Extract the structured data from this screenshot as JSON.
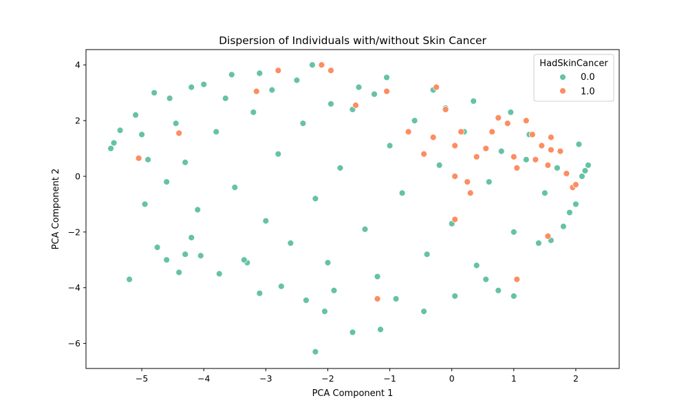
{
  "chart_data": {
    "type": "scatter",
    "title": "Dispersion of Individuals with/without Skin Cancer",
    "xlabel": "PCA Component 1",
    "ylabel": "PCA Component 2",
    "xlim": [
      -5.9,
      2.7
    ],
    "ylim": [
      -6.9,
      4.55
    ],
    "xticks": [
      -5,
      -4,
      -3,
      -2,
      -1,
      0,
      1,
      2
    ],
    "yticks": [
      -6,
      -4,
      -2,
      0,
      2,
      4
    ],
    "grid": false,
    "legend": {
      "title": "HadSkinCancer",
      "placement": "top-right"
    },
    "series": [
      {
        "name": "0.0",
        "color": "#66c2a5",
        "points": [
          [
            -5.5,
            1.0
          ],
          [
            -5.45,
            1.2
          ],
          [
            -5.35,
            1.65
          ],
          [
            -5.2,
            -3.7
          ],
          [
            -5.1,
            2.2
          ],
          [
            -5.0,
            1.5
          ],
          [
            -4.95,
            -1.0
          ],
          [
            -4.8,
            3.0
          ],
          [
            -4.75,
            -2.55
          ],
          [
            -4.6,
            -3.0
          ],
          [
            -4.55,
            2.8
          ],
          [
            -4.4,
            -3.45
          ],
          [
            -4.3,
            -2.8
          ],
          [
            -4.2,
            3.2
          ],
          [
            -4.05,
            -2.85
          ],
          [
            -4.0,
            3.3
          ],
          [
            -3.75,
            -3.5
          ],
          [
            -3.55,
            3.65
          ],
          [
            -3.3,
            -3.1
          ],
          [
            -3.1,
            -4.2
          ],
          [
            -3.1,
            3.7
          ],
          [
            -2.75,
            -3.95
          ],
          [
            -2.5,
            3.45
          ],
          [
            -2.35,
            -4.45
          ],
          [
            -2.2,
            -6.3
          ],
          [
            -2.25,
            4.0
          ],
          [
            -2.05,
            -4.85
          ],
          [
            -1.95,
            2.6
          ],
          [
            -1.6,
            -5.6
          ],
          [
            -1.5,
            3.2
          ],
          [
            -1.15,
            -5.5
          ],
          [
            -1.05,
            3.55
          ],
          [
            -0.45,
            -4.85
          ],
          [
            -0.3,
            3.1
          ],
          [
            0.05,
            -4.3
          ],
          [
            0.35,
            2.7
          ],
          [
            0.75,
            -4.1
          ],
          [
            0.95,
            2.3
          ],
          [
            1.0,
            -4.3
          ],
          [
            1.25,
            1.5
          ],
          [
            1.4,
            -2.4
          ],
          [
            1.6,
            -2.3
          ],
          [
            1.8,
            -1.8
          ],
          [
            2.0,
            -1.0
          ],
          [
            2.1,
            0.0
          ],
          [
            2.15,
            0.2
          ],
          [
            2.2,
            0.4
          ],
          [
            2.05,
            1.15
          ],
          [
            -4.3,
            0.5
          ],
          [
            -4.1,
            -1.2
          ],
          [
            -3.8,
            1.6
          ],
          [
            -3.5,
            -0.4
          ],
          [
            -3.2,
            2.3
          ],
          [
            -3.0,
            -1.6
          ],
          [
            -2.8,
            0.8
          ],
          [
            -2.6,
            -2.4
          ],
          [
            -2.4,
            1.9
          ],
          [
            -2.2,
            -0.8
          ],
          [
            -2.0,
            -3.1
          ],
          [
            -1.8,
            0.3
          ],
          [
            -1.6,
            2.4
          ],
          [
            -1.4,
            -1.9
          ],
          [
            -1.2,
            -3.6
          ],
          [
            -1.0,
            1.1
          ],
          [
            -0.8,
            -0.6
          ],
          [
            -0.6,
            2.0
          ],
          [
            -0.4,
            -2.8
          ],
          [
            -0.2,
            0.4
          ],
          [
            0.0,
            -1.7
          ],
          [
            0.2,
            1.6
          ],
          [
            0.4,
            -3.2
          ],
          [
            0.6,
            -0.2
          ],
          [
            0.8,
            0.9
          ],
          [
            1.0,
            -2.0
          ],
          [
            1.2,
            0.6
          ],
          [
            1.5,
            -0.6
          ],
          [
            1.7,
            0.3
          ],
          [
            1.9,
            -1.3
          ],
          [
            -4.6,
            -0.2
          ],
          [
            -4.9,
            0.6
          ],
          [
            -4.45,
            1.9
          ],
          [
            -3.65,
            2.8
          ],
          [
            -2.9,
            3.1
          ],
          [
            -1.25,
            2.95
          ],
          [
            -0.1,
            2.45
          ],
          [
            0.55,
            -3.7
          ],
          [
            -0.9,
            -4.4
          ],
          [
            -1.9,
            -4.1
          ],
          [
            -3.35,
            -3.0
          ],
          [
            -4.2,
            -2.2
          ]
        ]
      },
      {
        "name": "1.0",
        "color": "#fc8d62",
        "points": [
          [
            -5.05,
            0.65
          ],
          [
            -4.4,
            1.55
          ],
          [
            -3.15,
            3.05
          ],
          [
            -2.8,
            3.8
          ],
          [
            -2.1,
            4.0
          ],
          [
            -1.95,
            3.8
          ],
          [
            -1.55,
            2.55
          ],
          [
            -1.05,
            3.05
          ],
          [
            -0.25,
            3.2
          ],
          [
            -0.7,
            1.6
          ],
          [
            -0.45,
            0.8
          ],
          [
            -0.3,
            1.4
          ],
          [
            -0.1,
            2.4
          ],
          [
            0.05,
            1.1
          ],
          [
            0.15,
            1.6
          ],
          [
            0.3,
            -0.6
          ],
          [
            0.4,
            0.7
          ],
          [
            0.55,
            1.0
          ],
          [
            0.65,
            1.6
          ],
          [
            0.75,
            2.1
          ],
          [
            0.9,
            1.9
          ],
          [
            1.0,
            0.7
          ],
          [
            1.05,
            0.3
          ],
          [
            1.2,
            2.0
          ],
          [
            1.3,
            1.5
          ],
          [
            1.35,
            0.6
          ],
          [
            1.45,
            1.1
          ],
          [
            1.55,
            0.4
          ],
          [
            1.6,
            1.4
          ],
          [
            1.75,
            0.9
          ],
          [
            1.85,
            0.1
          ],
          [
            1.95,
            -0.4
          ],
          [
            2.0,
            -0.3
          ],
          [
            0.05,
            0.0
          ],
          [
            0.25,
            -0.2
          ],
          [
            0.05,
            -1.55
          ],
          [
            1.05,
            -3.7
          ],
          [
            -1.2,
            -4.4
          ],
          [
            1.55,
            -2.15
          ],
          [
            1.6,
            0.95
          ]
        ]
      }
    ]
  }
}
